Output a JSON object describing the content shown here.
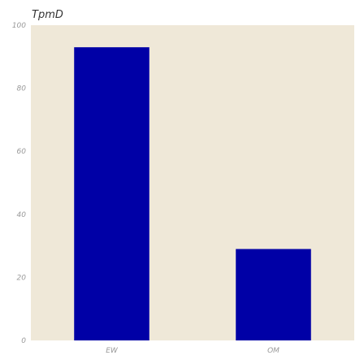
{
  "chart_data": {
    "type": "bar",
    "title": "TpmD",
    "categories": [
      "EW",
      "OM"
    ],
    "values": [
      93,
      29
    ],
    "xlabel": "",
    "ylabel": "",
    "ylim": [
      0,
      100
    ],
    "yticks": [
      0,
      20,
      40,
      60,
      80,
      100
    ],
    "grid": false,
    "legend": "none"
  },
  "colors": {
    "bar": "#0000a6",
    "plot_background": "#efe8d8",
    "page_background": "#ffffff",
    "tick_text": "#999999",
    "title_text": "#333333"
  }
}
